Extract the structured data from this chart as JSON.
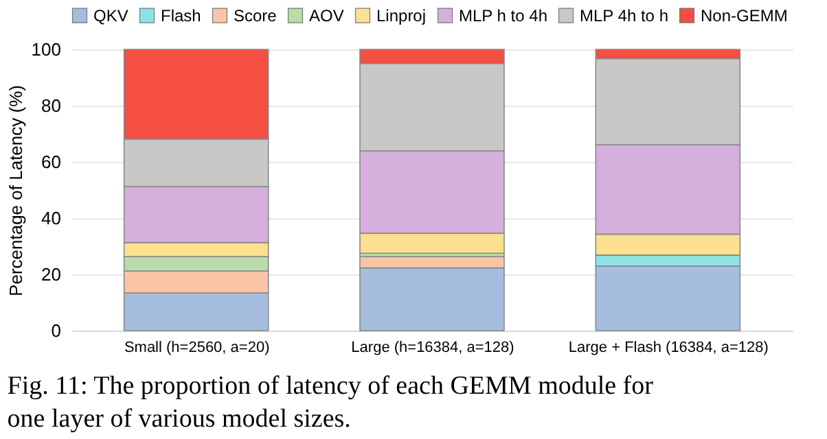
{
  "chart_data": {
    "type": "bar",
    "stacked": true,
    "categories": [
      "Small (h=2560, a=20)",
      "Large (h=16384, a=128)",
      "Large + Flash (16384, a=128)"
    ],
    "series": [
      {
        "name": "QKV",
        "color": "#a6bddf",
        "values": [
          13.4,
          22.3,
          23.0
        ]
      },
      {
        "name": "Flash",
        "color": "#8de3e3",
        "values": [
          0,
          0,
          3.9
        ]
      },
      {
        "name": "Score",
        "color": "#fbc4a6",
        "values": [
          7.8,
          4.0,
          0
        ]
      },
      {
        "name": "AOV",
        "color": "#badcaa",
        "values": [
          5.1,
          1.2,
          0
        ]
      },
      {
        "name": "Linproj",
        "color": "#fde08f",
        "values": [
          5.0,
          7.1,
          7.4
        ]
      },
      {
        "name": "MLP h to 4h",
        "color": "#d5b0dc",
        "values": [
          19.9,
          29.3,
          31.8
        ]
      },
      {
        "name": "MLP 4h to h",
        "color": "#c9c8c6",
        "values": [
          16.9,
          31.1,
          30.6
        ]
      },
      {
        "name": "Non-GEMM",
        "color": "#f44f42",
        "values": [
          31.9,
          5.0,
          3.3
        ]
      }
    ],
    "ylabel": "Percentage of Latency (%)",
    "ylim": [
      0,
      100
    ],
    "yticks": [
      0,
      20,
      40,
      60,
      80,
      100
    ],
    "grid": "y",
    "legend": "top",
    "annotations": [
      "Fig. 11: The proportion of latency of each GEMM module for one layer of various model sizes."
    ]
  }
}
